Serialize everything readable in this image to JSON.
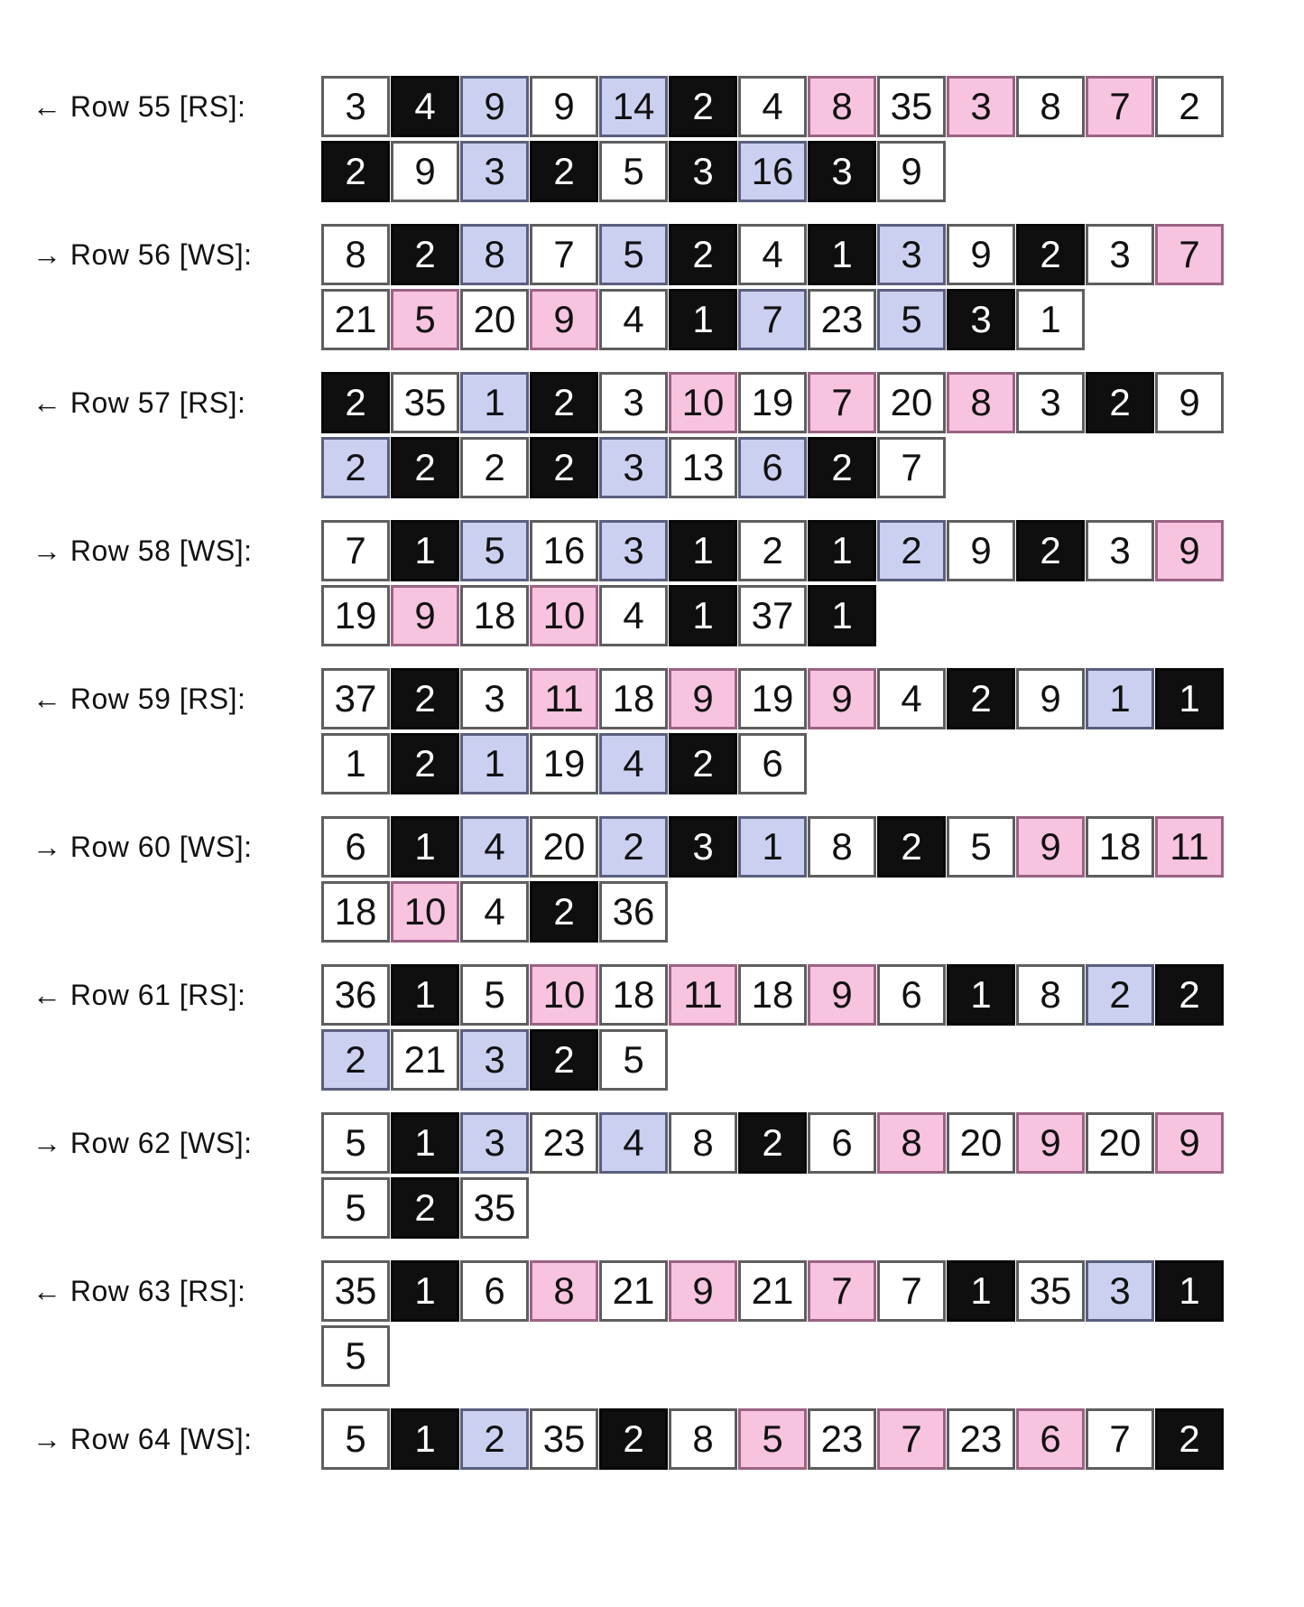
{
  "colors": {
    "white": "#ffffff",
    "black": "#0f0f0f",
    "lavender": "#ccd0f0",
    "pink": "#f8c3de"
  },
  "rows": [
    {
      "label": "← Row 55 [RS]:",
      "cells": [
        [
          "3",
          "white"
        ],
        [
          "4",
          "black"
        ],
        [
          "9",
          "lavender"
        ],
        [
          "9",
          "white"
        ],
        [
          "14",
          "lavender"
        ],
        [
          "2",
          "black"
        ],
        [
          "4",
          "white"
        ],
        [
          "8",
          "pink"
        ],
        [
          "35",
          "white"
        ],
        [
          "3",
          "pink"
        ],
        [
          "8",
          "white"
        ],
        [
          "7",
          "pink"
        ],
        [
          "2",
          "white"
        ],
        [
          "2",
          "black"
        ],
        [
          "9",
          "white"
        ],
        [
          "3",
          "lavender"
        ],
        [
          "2",
          "black"
        ],
        [
          "5",
          "white"
        ],
        [
          "3",
          "black"
        ],
        [
          "16",
          "lavender"
        ],
        [
          "3",
          "black"
        ],
        [
          "9",
          "white"
        ]
      ]
    },
    {
      "label": "→ Row 56 [WS]:",
      "cells": [
        [
          "8",
          "white"
        ],
        [
          "2",
          "black"
        ],
        [
          "8",
          "lavender"
        ],
        [
          "7",
          "white"
        ],
        [
          "5",
          "lavender"
        ],
        [
          "2",
          "black"
        ],
        [
          "4",
          "white"
        ],
        [
          "1",
          "black"
        ],
        [
          "3",
          "lavender"
        ],
        [
          "9",
          "white"
        ],
        [
          "2",
          "black"
        ],
        [
          "3",
          "white"
        ],
        [
          "7",
          "pink"
        ],
        [
          "21",
          "white"
        ],
        [
          "5",
          "pink"
        ],
        [
          "20",
          "white"
        ],
        [
          "9",
          "pink"
        ],
        [
          "4",
          "white"
        ],
        [
          "1",
          "black"
        ],
        [
          "7",
          "lavender"
        ],
        [
          "23",
          "white"
        ],
        [
          "5",
          "lavender"
        ],
        [
          "3",
          "black"
        ],
        [
          "1",
          "white"
        ]
      ]
    },
    {
      "label": "← Row 57 [RS]:",
      "cells": [
        [
          "2",
          "black"
        ],
        [
          "35",
          "white"
        ],
        [
          "1",
          "lavender"
        ],
        [
          "2",
          "black"
        ],
        [
          "3",
          "white"
        ],
        [
          "10",
          "pink"
        ],
        [
          "19",
          "white"
        ],
        [
          "7",
          "pink"
        ],
        [
          "20",
          "white"
        ],
        [
          "8",
          "pink"
        ],
        [
          "3",
          "white"
        ],
        [
          "2",
          "black"
        ],
        [
          "9",
          "white"
        ],
        [
          "2",
          "lavender"
        ],
        [
          "2",
          "black"
        ],
        [
          "2",
          "white"
        ],
        [
          "2",
          "black"
        ],
        [
          "3",
          "lavender"
        ],
        [
          "13",
          "white"
        ],
        [
          "6",
          "lavender"
        ],
        [
          "2",
          "black"
        ],
        [
          "7",
          "white"
        ]
      ]
    },
    {
      "label": "→ Row 58 [WS]:",
      "cells": [
        [
          "7",
          "white"
        ],
        [
          "1",
          "black"
        ],
        [
          "5",
          "lavender"
        ],
        [
          "16",
          "white"
        ],
        [
          "3",
          "lavender"
        ],
        [
          "1",
          "black"
        ],
        [
          "2",
          "white"
        ],
        [
          "1",
          "black"
        ],
        [
          "2",
          "lavender"
        ],
        [
          "9",
          "white"
        ],
        [
          "2",
          "black"
        ],
        [
          "3",
          "white"
        ],
        [
          "9",
          "pink"
        ],
        [
          "19",
          "white"
        ],
        [
          "9",
          "pink"
        ],
        [
          "18",
          "white"
        ],
        [
          "10",
          "pink"
        ],
        [
          "4",
          "white"
        ],
        [
          "1",
          "black"
        ],
        [
          "37",
          "white"
        ],
        [
          "1",
          "black"
        ]
      ]
    },
    {
      "label": "← Row 59 [RS]:",
      "cells": [
        [
          "37",
          "white"
        ],
        [
          "2",
          "black"
        ],
        [
          "3",
          "white"
        ],
        [
          "11",
          "pink"
        ],
        [
          "18",
          "white"
        ],
        [
          "9",
          "pink"
        ],
        [
          "19",
          "white"
        ],
        [
          "9",
          "pink"
        ],
        [
          "4",
          "white"
        ],
        [
          "2",
          "black"
        ],
        [
          "9",
          "white"
        ],
        [
          "1",
          "lavender"
        ],
        [
          "1",
          "black"
        ],
        [
          "1",
          "white"
        ],
        [
          "2",
          "black"
        ],
        [
          "1",
          "lavender"
        ],
        [
          "19",
          "white"
        ],
        [
          "4",
          "lavender"
        ],
        [
          "2",
          "black"
        ],
        [
          "6",
          "white"
        ]
      ]
    },
    {
      "label": "→ Row 60 [WS]:",
      "cells": [
        [
          "6",
          "white"
        ],
        [
          "1",
          "black"
        ],
        [
          "4",
          "lavender"
        ],
        [
          "20",
          "white"
        ],
        [
          "2",
          "lavender"
        ],
        [
          "3",
          "black"
        ],
        [
          "1",
          "lavender"
        ],
        [
          "8",
          "white"
        ],
        [
          "2",
          "black"
        ],
        [
          "5",
          "white"
        ],
        [
          "9",
          "pink"
        ],
        [
          "18",
          "white"
        ],
        [
          "11",
          "pink"
        ],
        [
          "18",
          "white"
        ],
        [
          "10",
          "pink"
        ],
        [
          "4",
          "white"
        ],
        [
          "2",
          "black"
        ],
        [
          "36",
          "white"
        ]
      ]
    },
    {
      "label": "← Row 61 [RS]:",
      "cells": [
        [
          "36",
          "white"
        ],
        [
          "1",
          "black"
        ],
        [
          "5",
          "white"
        ],
        [
          "10",
          "pink"
        ],
        [
          "18",
          "white"
        ],
        [
          "11",
          "pink"
        ],
        [
          "18",
          "white"
        ],
        [
          "9",
          "pink"
        ],
        [
          "6",
          "white"
        ],
        [
          "1",
          "black"
        ],
        [
          "8",
          "white"
        ],
        [
          "2",
          "lavender"
        ],
        [
          "2",
          "black"
        ],
        [
          "2",
          "lavender"
        ],
        [
          "21",
          "white"
        ],
        [
          "3",
          "lavender"
        ],
        [
          "2",
          "black"
        ],
        [
          "5",
          "white"
        ]
      ]
    },
    {
      "label": "→ Row 62 [WS]:",
      "cells": [
        [
          "5",
          "white"
        ],
        [
          "1",
          "black"
        ],
        [
          "3",
          "lavender"
        ],
        [
          "23",
          "white"
        ],
        [
          "4",
          "lavender"
        ],
        [
          "8",
          "white"
        ],
        [
          "2",
          "black"
        ],
        [
          "6",
          "white"
        ],
        [
          "8",
          "pink"
        ],
        [
          "20",
          "white"
        ],
        [
          "9",
          "pink"
        ],
        [
          "20",
          "white"
        ],
        [
          "9",
          "pink"
        ],
        [
          "5",
          "white"
        ],
        [
          "2",
          "black"
        ],
        [
          "35",
          "white"
        ]
      ]
    },
    {
      "label": "← Row 63 [RS]:",
      "cells": [
        [
          "35",
          "white"
        ],
        [
          "1",
          "black"
        ],
        [
          "6",
          "white"
        ],
        [
          "8",
          "pink"
        ],
        [
          "21",
          "white"
        ],
        [
          "9",
          "pink"
        ],
        [
          "21",
          "white"
        ],
        [
          "7",
          "pink"
        ],
        [
          "7",
          "white"
        ],
        [
          "1",
          "black"
        ],
        [
          "35",
          "white"
        ],
        [
          "3",
          "lavender"
        ],
        [
          "1",
          "black"
        ],
        [
          "5",
          "white"
        ]
      ]
    },
    {
      "label": "→ Row 64 [WS]:",
      "cells": [
        [
          "5",
          "white"
        ],
        [
          "1",
          "black"
        ],
        [
          "2",
          "lavender"
        ],
        [
          "35",
          "white"
        ],
        [
          "2",
          "black"
        ],
        [
          "8",
          "white"
        ],
        [
          "5",
          "pink"
        ],
        [
          "23",
          "white"
        ],
        [
          "7",
          "pink"
        ],
        [
          "23",
          "white"
        ],
        [
          "6",
          "pink"
        ],
        [
          "7",
          "white"
        ],
        [
          "2",
          "black"
        ]
      ]
    }
  ]
}
